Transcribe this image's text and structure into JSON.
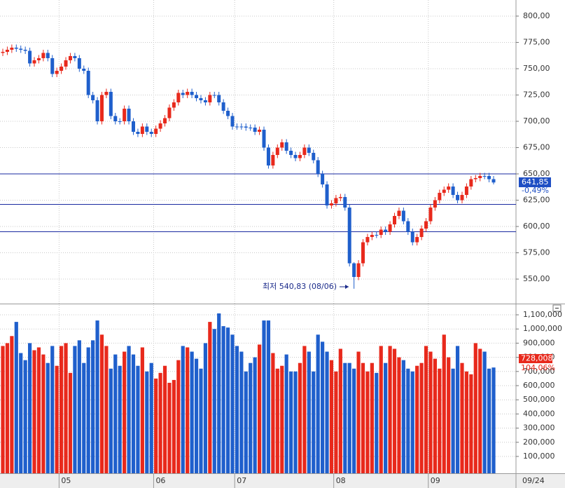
{
  "chart_data": [
    {
      "type": "candlestick",
      "open": [
        765,
        766,
        768,
        770,
        769,
        768,
        767,
        755,
        758,
        760,
        765,
        760,
        745,
        748,
        752,
        758,
        762,
        760,
        750,
        748,
        725,
        720,
        700,
        725,
        728,
        705,
        700,
        700,
        712,
        700,
        690,
        688,
        695,
        690,
        688,
        693,
        698,
        703,
        713,
        718,
        727,
        725,
        728,
        725,
        722,
        720,
        718,
        725,
        725,
        718,
        710,
        705,
        695,
        695,
        695,
        694,
        694,
        690,
        692,
        675,
        658,
        668,
        675,
        680,
        672,
        668,
        665,
        668,
        675,
        670,
        663,
        650,
        640,
        620,
        622,
        627,
        628,
        618,
        565,
        552,
        565,
        585,
        590,
        592,
        592,
        597,
        595,
        602,
        610,
        615,
        605,
        595,
        585,
        590,
        598,
        605,
        618,
        625,
        632,
        635,
        638,
        630,
        625,
        630,
        638,
        645,
        646,
        648,
        648,
        645
      ],
      "high": [
        769,
        771,
        773,
        773,
        772,
        771,
        770,
        761,
        763,
        768,
        768,
        763,
        751,
        755,
        761,
        765,
        765,
        763,
        753,
        751,
        728,
        723,
        728,
        731,
        731,
        708,
        703,
        715,
        715,
        703,
        693,
        698,
        698,
        693,
        696,
        701,
        706,
        716,
        721,
        730,
        730,
        731,
        731,
        728,
        725,
        723,
        728,
        728,
        728,
        721,
        713,
        708,
        698,
        698,
        698,
        697,
        697,
        695,
        695,
        678,
        671,
        678,
        683,
        683,
        675,
        671,
        671,
        678,
        678,
        673,
        666,
        653,
        643,
        625,
        630,
        631,
        631,
        621,
        566,
        568,
        588,
        593,
        595,
        595,
        600,
        600,
        605,
        613,
        618,
        618,
        608,
        598,
        593,
        601,
        608,
        621,
        628,
        635,
        638,
        641,
        641,
        633,
        633,
        641,
        648,
        649,
        651,
        651,
        651,
        648
      ],
      "low": [
        762,
        763,
        765,
        766,
        765,
        764,
        752,
        752,
        755,
        757,
        757,
        742,
        742,
        745,
        749,
        755,
        757,
        747,
        745,
        722,
        717,
        697,
        697,
        722,
        702,
        697,
        697,
        697,
        697,
        687,
        685,
        685,
        687,
        685,
        685,
        690,
        695,
        700,
        710,
        715,
        722,
        722,
        722,
        719,
        717,
        715,
        715,
        722,
        715,
        707,
        702,
        692,
        692,
        692,
        691,
        691,
        687,
        687,
        672,
        655,
        655,
        665,
        672,
        669,
        665,
        662,
        662,
        665,
        667,
        660,
        647,
        637,
        617,
        617,
        619,
        624,
        615,
        562,
        540.83,
        549,
        562,
        582,
        587,
        589,
        589,
        592,
        592,
        599,
        607,
        602,
        592,
        582,
        582,
        587,
        595,
        602,
        615,
        622,
        629,
        632,
        627,
        622,
        622,
        627,
        635,
        642,
        643,
        645,
        642,
        640
      ],
      "close": [
        766,
        768,
        770,
        769,
        768,
        767,
        755,
        758,
        760,
        765,
        760,
        745,
        748,
        752,
        758,
        762,
        760,
        750,
        748,
        725,
        720,
        700,
        725,
        728,
        705,
        700,
        700,
        712,
        700,
        690,
        688,
        695,
        690,
        688,
        693,
        698,
        703,
        713,
        718,
        727,
        725,
        728,
        725,
        722,
        720,
        718,
        725,
        725,
        718,
        710,
        705,
        695,
        695,
        695,
        694,
        694,
        690,
        692,
        675,
        658,
        668,
        675,
        680,
        672,
        668,
        665,
        668,
        675,
        670,
        663,
        650,
        640,
        620,
        622,
        627,
        628,
        618,
        565,
        552,
        565,
        585,
        590,
        592,
        592,
        597,
        595,
        602,
        610,
        615,
        605,
        595,
        585,
        590,
        598,
        605,
        618,
        625,
        632,
        635,
        638,
        630,
        625,
        630,
        638,
        645,
        646,
        648,
        648,
        645,
        641.85
      ],
      "up_color": "#e8291c",
      "down_color": "#1f5fcc",
      "ylim": [
        526.7,
        815.3
      ],
      "yticks": [
        {
          "value": 550,
          "label": "550,00"
        },
        {
          "value": 575,
          "label": "575,00"
        },
        {
          "value": 600,
          "label": "600,00"
        },
        {
          "value": 625,
          "label": "625,00"
        },
        {
          "value": 650,
          "label": "650,00"
        },
        {
          "value": 675,
          "label": "675,00"
        },
        {
          "value": 700,
          "label": "700,00"
        },
        {
          "value": 725,
          "label": "725,00"
        },
        {
          "value": 750,
          "label": "750,00"
        },
        {
          "value": 775,
          "label": "775,00"
        },
        {
          "value": 800,
          "label": "800,00"
        }
      ],
      "xticks": [
        {
          "value": 13,
          "label": "05"
        },
        {
          "value": 34,
          "label": "06"
        },
        {
          "value": 52,
          "label": "07"
        },
        {
          "value": 74,
          "label": "08"
        },
        {
          "value": 95,
          "label": "09"
        }
      ],
      "hlines": [
        650,
        621,
        595
      ],
      "hline_color": "#1a2aa0",
      "last_label": "641,85",
      "change_label": "-0,49%",
      "annotation": "최저 540,83 (08/06)",
      "date_label": "09/24",
      "grid": true
    },
    {
      "type": "volume",
      "values": [
        880000,
        900000,
        950000,
        1050000,
        830000,
        780000,
        900000,
        850000,
        870000,
        820000,
        760000,
        880000,
        740000,
        880000,
        900000,
        690000,
        880000,
        920000,
        760000,
        870000,
        920000,
        1060000,
        960000,
        880000,
        720000,
        820000,
        740000,
        840000,
        880000,
        820000,
        740000,
        870000,
        700000,
        760000,
        650000,
        690000,
        740000,
        620000,
        640000,
        780000,
        880000,
        870000,
        840000,
        790000,
        720000,
        900000,
        1050000,
        1000000,
        1110000,
        1020000,
        1010000,
        960000,
        880000,
        840000,
        700000,
        760000,
        800000,
        890000,
        1060000,
        1060000,
        830000,
        720000,
        740000,
        820000,
        700000,
        700000,
        760000,
        880000,
        840000,
        700000,
        960000,
        910000,
        840000,
        780000,
        700000,
        860000,
        760000,
        760000,
        720000,
        840000,
        760000,
        700000,
        760000,
        690000,
        880000,
        760000,
        880000,
        860000,
        800000,
        780000,
        720000,
        700000,
        740000,
        760000,
        880000,
        840000,
        790000,
        720000,
        960000,
        800000,
        720000,
        880000,
        760000,
        700000,
        680000,
        900000,
        860000,
        840000,
        720000,
        728008
      ],
      "ylim": [
        -18800,
        1169300
      ],
      "yticks": [
        {
          "value": 100000,
          "label": "100,000"
        },
        {
          "value": 200000,
          "label": "200,000"
        },
        {
          "value": 300000,
          "label": "300,000"
        },
        {
          "value": 400000,
          "label": "400,000"
        },
        {
          "value": 500000,
          "label": "500,000"
        },
        {
          "value": 600000,
          "label": "600,000"
        },
        {
          "value": 700000,
          "label": "700,000"
        },
        {
          "value": 800000,
          "label": "800,000"
        },
        {
          "value": 900000,
          "label": "900,000"
        },
        {
          "value": 1000000,
          "label": "1,000,000"
        },
        {
          "value": 1100000,
          "label": "1,100,000"
        }
      ],
      "last_label": "728,008",
      "ratio_label": "104,06%",
      "grid": true
    }
  ]
}
